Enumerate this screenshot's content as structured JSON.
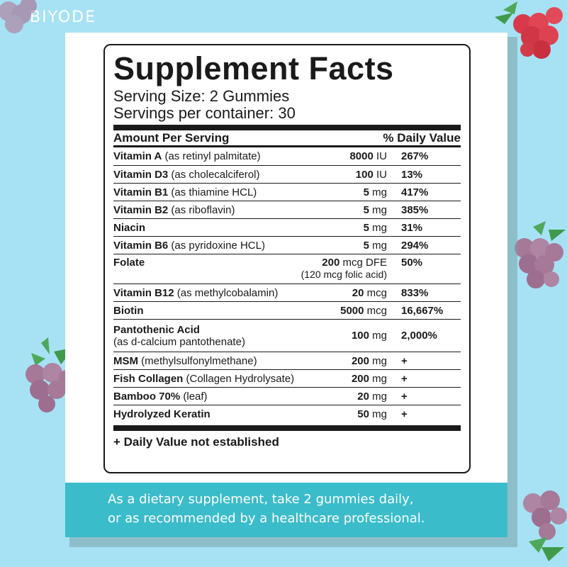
{
  "brand": "BIYODE",
  "facts": {
    "title": "Supplement Facts",
    "serving_size": "Serving Size: 2 Gummies",
    "servings_per_container": "Servings per container: 30",
    "header_amount": "Amount Per Serving",
    "header_dv": "% Daily Value",
    "rows": [
      {
        "name": "Vitamin A",
        "detail": "(as retinyl palmitate)",
        "amount": "8000",
        "unit": "IU",
        "dv": "267%"
      },
      {
        "name": "Vitamin D3",
        "detail": "(as cholecalciferol)",
        "amount": "100",
        "unit": "IU",
        "dv": "13%"
      },
      {
        "name": "Vitamin B1",
        "detail": "(as thiamine HCL)",
        "amount": "5",
        "unit": "mg",
        "dv": "417%"
      },
      {
        "name": "Vitamin B2",
        "detail": "(as riboflavin)",
        "amount": "5",
        "unit": "mg",
        "dv": "385%"
      },
      {
        "name": "Niacin",
        "detail": "",
        "amount": "5",
        "unit": "mg",
        "dv": "31%"
      },
      {
        "name": "Vitamin B6",
        "detail": "(as pyridoxine HCL)",
        "amount": "5",
        "unit": "mg",
        "dv": "294%"
      },
      {
        "name": "Folate",
        "detail": "",
        "amount": "200",
        "unit": "mcg DFE",
        "note": "(120 mcg folic acid)",
        "dv": "50%"
      },
      {
        "name": "Vitamin B12",
        "detail": "(as methylcobalamin)",
        "amount": "20",
        "unit": "mcg",
        "dv": "833%"
      },
      {
        "name": "Biotin",
        "detail": "",
        "amount": "5000",
        "unit": "mcg",
        "dv": "16,667%"
      },
      {
        "name": "Pantothenic Acid",
        "detail": "(as d-calcium pantothenate)",
        "amount": "100",
        "unit": "mg",
        "dv": "2,000%"
      },
      {
        "name": "MSM",
        "detail": "(methylsulfonylmethane)",
        "amount": "200",
        "unit": "mg",
        "dv": "+"
      },
      {
        "name": "Fish Collagen",
        "detail": "(Collagen Hydrolysate)",
        "amount": "200",
        "unit": "mg",
        "dv": "+"
      },
      {
        "name": "Bamboo 70%",
        "detail": "(leaf)",
        "amount": "20",
        "unit": "mg",
        "dv": "+"
      },
      {
        "name": "Hydrolyzed Keratin",
        "detail": "",
        "amount": "50",
        "unit": "mg",
        "dv": "+"
      }
    ],
    "footnote": "+ Daily Value not established"
  },
  "directions": {
    "line1": "As a dietary supplement, take 2 gummies daily,",
    "line2": "or as recommended by a healthcare professional."
  },
  "colors": {
    "background": "#a6e2f4",
    "band": "#3bbcca",
    "berry": "#9c5a7f",
    "leaf": "#4fa85a"
  },
  "decorations": [
    "raspberry",
    "raspberry",
    "raspberry",
    "raspberry",
    "raspberry"
  ]
}
